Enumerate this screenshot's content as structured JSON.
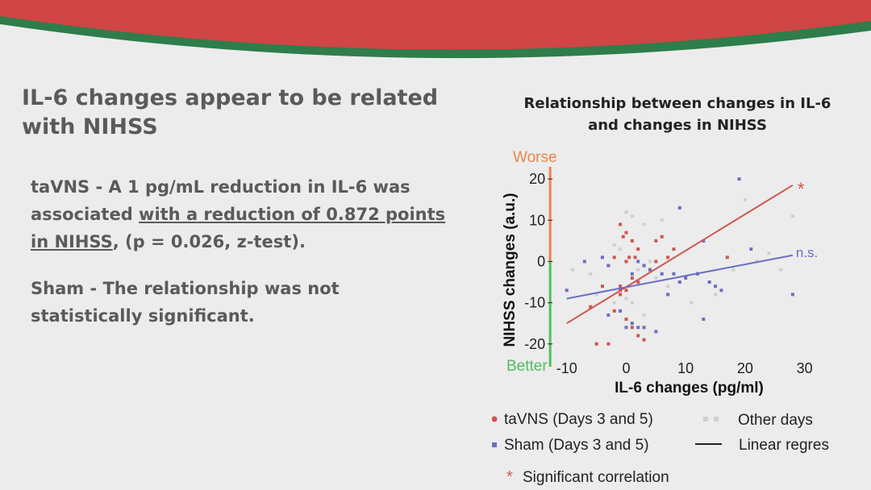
{
  "slide": {
    "title": "IL-6 changes appear to be related with NIHSS",
    "tavns_text": {
      "prefix": "taVNS - A 1 pg/mL reduction in IL-6 was associated ",
      "underlined": "with a reduction of 0.872 points in NIHSS",
      "suffix": ", (p = 0.026, z-test)."
    },
    "sham_text": "Sham - The relationship was not statistically significant.",
    "colors": {
      "banner_red": "#d04545",
      "banner_green": "#2e7d4a",
      "background": "#ececec",
      "text": "#5a5a5a"
    }
  },
  "chart_data": {
    "type": "scatter",
    "title": "Relationship between changes in IL-6 and changes in NIHSS",
    "xlabel": "IL-6 changes (pg/ml)",
    "ylabel": "NIHSS changes (a.u.)",
    "xlim": [
      -12,
      31
    ],
    "ylim": [
      -22,
      21
    ],
    "xticks": [
      -10,
      0,
      10,
      20,
      30
    ],
    "yticks": [
      20,
      10,
      0,
      -10,
      -20
    ],
    "worse_label": "Worse",
    "better_label": "Better",
    "colors": {
      "tavns": "#d0554f",
      "sham": "#6a6fc4",
      "other": "#cfcfcf",
      "worse": "#e8844a",
      "better": "#4fbf5f"
    },
    "series": [
      {
        "name": "taVNS (Days 3 and 5)",
        "color": "#d0554f",
        "points": [
          [
            -1,
            9
          ],
          [
            0,
            7
          ],
          [
            -0.5,
            6
          ],
          [
            1,
            5
          ],
          [
            2,
            3
          ],
          [
            1.5,
            1
          ],
          [
            0,
            0
          ],
          [
            0.5,
            1
          ],
          [
            3,
            -1
          ],
          [
            4,
            -2
          ],
          [
            5,
            0
          ],
          [
            7,
            1
          ],
          [
            8,
            3
          ],
          [
            5,
            5
          ],
          [
            6,
            6
          ],
          [
            -2,
            1
          ],
          [
            -3,
            -1
          ],
          [
            1,
            -4
          ],
          [
            -1,
            -6
          ],
          [
            0,
            -7
          ],
          [
            -1,
            -8
          ],
          [
            2,
            -5
          ],
          [
            -4,
            -6
          ],
          [
            -2,
            -12
          ],
          [
            0,
            -14
          ],
          [
            1,
            -16
          ],
          [
            2,
            -18
          ],
          [
            -3,
            -20
          ],
          [
            -5,
            -20
          ],
          [
            3,
            -19
          ],
          [
            -6,
            -11
          ],
          [
            12,
            -3
          ],
          [
            17,
            1
          ],
          [
            -1,
            -7
          ]
        ]
      },
      {
        "name": "Sham (Days 3 and 5)",
        "color": "#6a6fc4",
        "points": [
          [
            -10,
            -7
          ],
          [
            -7,
            0
          ],
          [
            -4,
            1
          ],
          [
            -3,
            -1
          ],
          [
            1,
            -3
          ],
          [
            2,
            0
          ],
          [
            3,
            -1
          ],
          [
            4,
            -2
          ],
          [
            6,
            -3
          ],
          [
            8,
            -3
          ],
          [
            9,
            -5
          ],
          [
            10,
            -4
          ],
          [
            9,
            13
          ],
          [
            13,
            -14
          ],
          [
            13,
            5
          ],
          [
            14,
            -5
          ],
          [
            15,
            -6
          ],
          [
            16,
            -7
          ],
          [
            19,
            20
          ],
          [
            21,
            3
          ],
          [
            28,
            -8
          ],
          [
            1,
            -15
          ],
          [
            2,
            -16
          ],
          [
            3,
            -16
          ],
          [
            0,
            -16
          ],
          [
            5,
            -17
          ],
          [
            -3,
            -13
          ],
          [
            -1,
            -12
          ],
          [
            7,
            -8
          ],
          [
            12,
            -3
          ]
        ]
      },
      {
        "name": "Other days",
        "color": "#cfcfcf",
        "points": [
          [
            -9,
            -2
          ],
          [
            -6,
            -3
          ],
          [
            -2,
            4
          ],
          [
            0,
            12
          ],
          [
            1,
            11
          ],
          [
            3,
            9
          ],
          [
            6,
            10
          ],
          [
            -1,
            3
          ],
          [
            2,
            -2
          ],
          [
            4,
            0
          ],
          [
            5,
            -4
          ],
          [
            7,
            -6
          ],
          [
            -2,
            -10
          ],
          [
            0,
            -9
          ],
          [
            1,
            -10
          ],
          [
            3,
            -13
          ],
          [
            20,
            15
          ],
          [
            24,
            2
          ],
          [
            26,
            -2
          ],
          [
            28,
            11
          ],
          [
            22,
            0
          ],
          [
            18,
            -2
          ],
          [
            15,
            -8
          ],
          [
            11,
            -10
          ],
          [
            -5,
            -8
          ]
        ]
      }
    ],
    "regression_lines": [
      {
        "name": "taVNS",
        "color": "#d0554f",
        "x": [
          -10,
          28
        ],
        "y": [
          -15,
          18.5
        ],
        "label": "*"
      },
      {
        "name": "Sham",
        "color": "#6a6fc4",
        "x": [
          -10,
          28
        ],
        "y": [
          -9,
          1.5
        ],
        "label": "n.s."
      }
    ],
    "legend": [
      {
        "marker": "dot",
        "color": "#d0554f",
        "label": "taVNS (Days 3 and 5)"
      },
      {
        "marker": "square",
        "color": "#6a6fc4",
        "label": "Sham (Days 3 and 5)"
      },
      {
        "marker": "squares",
        "color": "#cfcfcf",
        "label": "Other days"
      },
      {
        "marker": "line",
        "color": "#222222",
        "label": "Linear regres"
      },
      {
        "marker": "star",
        "color": "#d0554f",
        "label": "Significant correlation"
      }
    ],
    "legend_placement": "bottom",
    "grid": false
  }
}
